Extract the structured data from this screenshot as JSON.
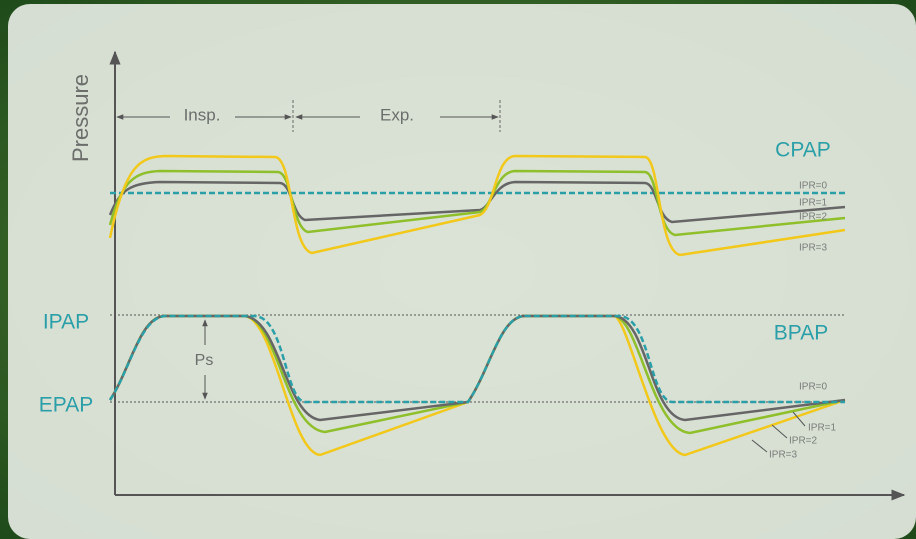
{
  "axis_label": "Pressure",
  "phases": {
    "inspiration": "Insp.",
    "expiration": "Exp."
  },
  "cpap": {
    "label": "CPAP",
    "ipr_labels": [
      "IPR=0",
      "IPR=1",
      "IPR=2",
      "IPR=3"
    ]
  },
  "bpap": {
    "label": "BPAP",
    "ipap": "IPAP",
    "epap": "EPAP",
    "ps": "Ps",
    "ipr_labels": [
      "IPR=0",
      "IPR=1",
      "IPR=2",
      "IPR=3"
    ]
  }
}
